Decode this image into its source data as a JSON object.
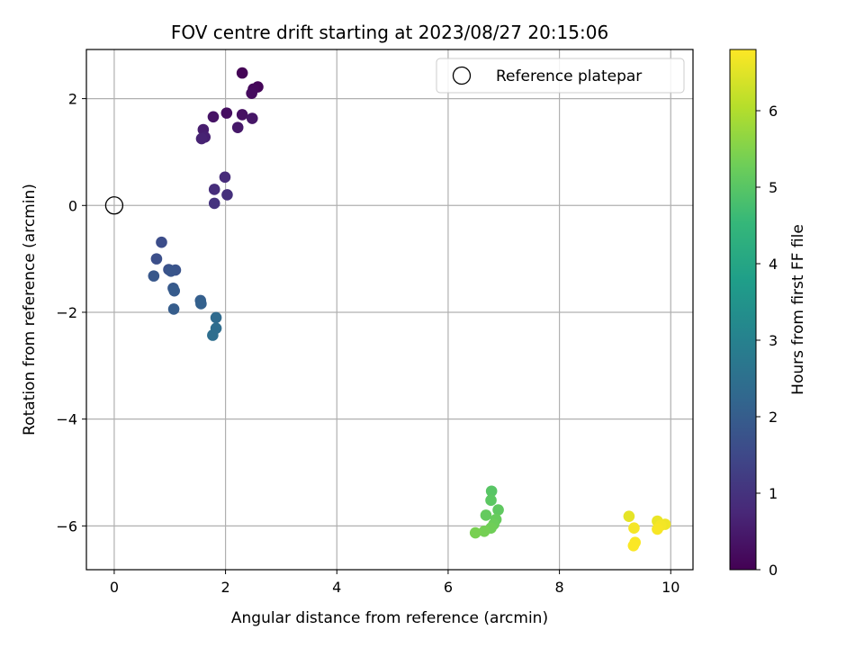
{
  "chart_data": {
    "type": "scatter",
    "title": "FOV centre drift starting at 2023/08/27 20:15:06",
    "xlabel": "Angular distance from reference (arcmin)",
    "ylabel": "Rotation from reference (arcmin)",
    "xlim": [
      -0.5,
      10.4
    ],
    "ylim": [
      -6.82,
      2.92
    ],
    "xticks": [
      0,
      2,
      4,
      6,
      8,
      10
    ],
    "xtick_labels": [
      "0",
      "2",
      "4",
      "6",
      "8",
      "10"
    ],
    "yticks": [
      2,
      0,
      -2,
      -4,
      -6
    ],
    "ytick_labels": [
      "2",
      "0",
      "−2",
      "−4",
      "−6"
    ],
    "grid": true,
    "legend": {
      "placement": "top-right",
      "entries": [
        "Reference platepar"
      ]
    },
    "reference_point": {
      "name": "Reference platepar",
      "x": 0,
      "y": 0
    },
    "colorbar": {
      "label": "Hours from first FF file",
      "range": [
        0,
        6.8
      ],
      "ticks": [
        0,
        1,
        2,
        3,
        4,
        5,
        6
      ],
      "tick_labels": [
        "0",
        "1",
        "2",
        "3",
        "4",
        "5",
        "6"
      ],
      "colormap": "viridis",
      "colormap_stops": [
        "#440154",
        "#482878",
        "#3e4989",
        "#31688e",
        "#26828e",
        "#1f9e89",
        "#35b779",
        "#6ece58",
        "#b5de2b",
        "#fde725"
      ]
    },
    "points": [
      {
        "x": 2.3,
        "y": 2.48,
        "t": 0.05
      },
      {
        "x": 2.58,
        "y": 2.22,
        "t": 0.1
      },
      {
        "x": 2.5,
        "y": 2.18,
        "t": 0.15
      },
      {
        "x": 2.47,
        "y": 2.1,
        "t": 0.2
      },
      {
        "x": 2.02,
        "y": 1.73,
        "t": 0.25
      },
      {
        "x": 2.3,
        "y": 1.7,
        "t": 0.3
      },
      {
        "x": 1.78,
        "y": 1.66,
        "t": 0.35
      },
      {
        "x": 2.48,
        "y": 1.63,
        "t": 0.4
      },
      {
        "x": 2.22,
        "y": 1.46,
        "t": 0.45
      },
      {
        "x": 1.6,
        "y": 1.42,
        "t": 0.55
      },
      {
        "x": 1.63,
        "y": 1.28,
        "t": 0.6
      },
      {
        "x": 1.57,
        "y": 1.25,
        "t": 0.65
      },
      {
        "x": 1.99,
        "y": 0.53,
        "t": 0.85
      },
      {
        "x": 1.8,
        "y": 0.3,
        "t": 0.9
      },
      {
        "x": 2.03,
        "y": 0.2,
        "t": 0.95
      },
      {
        "x": 1.8,
        "y": 0.04,
        "t": 1.0
      },
      {
        "x": 0.85,
        "y": -0.69,
        "t": 1.6
      },
      {
        "x": 0.76,
        "y": -1.0,
        "t": 1.65
      },
      {
        "x": 0.98,
        "y": -1.2,
        "t": 1.7
      },
      {
        "x": 1.1,
        "y": -1.21,
        "t": 1.75
      },
      {
        "x": 1.02,
        "y": -1.23,
        "t": 1.8
      },
      {
        "x": 0.71,
        "y": -1.32,
        "t": 1.85
      },
      {
        "x": 1.06,
        "y": -1.55,
        "t": 1.9
      },
      {
        "x": 1.08,
        "y": -1.6,
        "t": 1.95
      },
      {
        "x": 1.55,
        "y": -1.78,
        "t": 2.05
      },
      {
        "x": 1.56,
        "y": -1.84,
        "t": 2.1
      },
      {
        "x": 1.07,
        "y": -1.94,
        "t": 2.0
      },
      {
        "x": 1.83,
        "y": -2.1,
        "t": 2.35
      },
      {
        "x": 1.83,
        "y": -2.3,
        "t": 2.4
      },
      {
        "x": 1.77,
        "y": -2.43,
        "t": 2.45
      },
      {
        "x": 6.78,
        "y": -5.35,
        "t": 5.0
      },
      {
        "x": 6.77,
        "y": -5.52,
        "t": 5.05
      },
      {
        "x": 6.9,
        "y": -5.7,
        "t": 5.1
      },
      {
        "x": 6.68,
        "y": -5.8,
        "t": 5.15
      },
      {
        "x": 6.86,
        "y": -5.88,
        "t": 5.2
      },
      {
        "x": 6.82,
        "y": -5.97,
        "t": 5.25
      },
      {
        "x": 6.77,
        "y": -6.04,
        "t": 5.3
      },
      {
        "x": 6.65,
        "y": -6.1,
        "t": 5.35
      },
      {
        "x": 6.49,
        "y": -6.13,
        "t": 5.4
      },
      {
        "x": 9.25,
        "y": -5.82,
        "t": 6.55
      },
      {
        "x": 9.76,
        "y": -5.91,
        "t": 6.6
      },
      {
        "x": 9.9,
        "y": -5.97,
        "t": 6.65
      },
      {
        "x": 9.82,
        "y": -5.99,
        "t": 6.7
      },
      {
        "x": 9.34,
        "y": -6.04,
        "t": 6.72
      },
      {
        "x": 9.76,
        "y": -6.06,
        "t": 6.74
      },
      {
        "x": 9.36,
        "y": -6.31,
        "t": 6.76
      },
      {
        "x": 9.33,
        "y": -6.37,
        "t": 6.78
      }
    ]
  }
}
